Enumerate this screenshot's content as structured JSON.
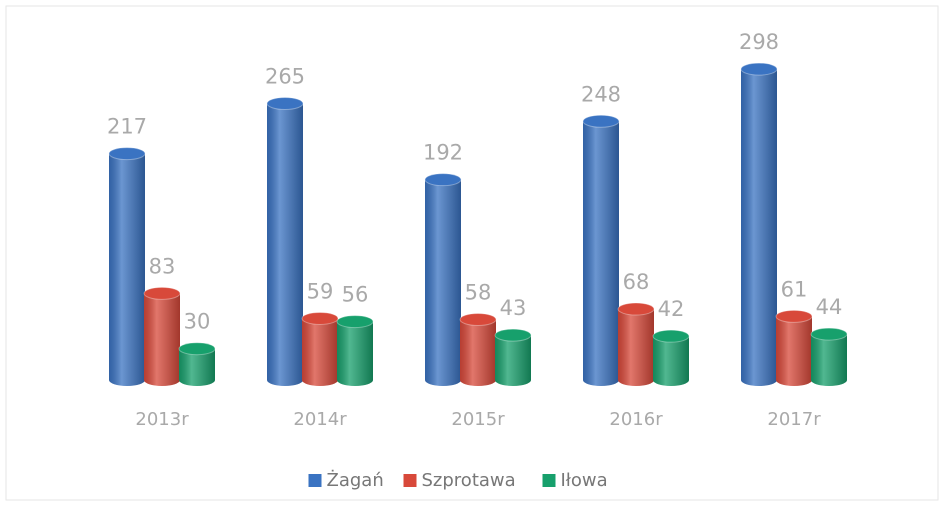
{
  "chart_data": {
    "type": "bar",
    "categories": [
      "2013r",
      "2014r",
      "2015r",
      "2016r",
      "2017r"
    ],
    "series": [
      {
        "name": "Żagań",
        "color": "#3a73c2",
        "values": [
          217,
          265,
          192,
          248,
          298
        ]
      },
      {
        "name": "Szprotawa",
        "color": "#d8493a",
        "values": [
          83,
          59,
          58,
          68,
          61
        ]
      },
      {
        "name": "Iłowa",
        "color": "#17a06c",
        "values": [
          30,
          56,
          43,
          42,
          44
        ]
      }
    ],
    "ylim": [
      0,
      300
    ],
    "legend": "bottom"
  }
}
